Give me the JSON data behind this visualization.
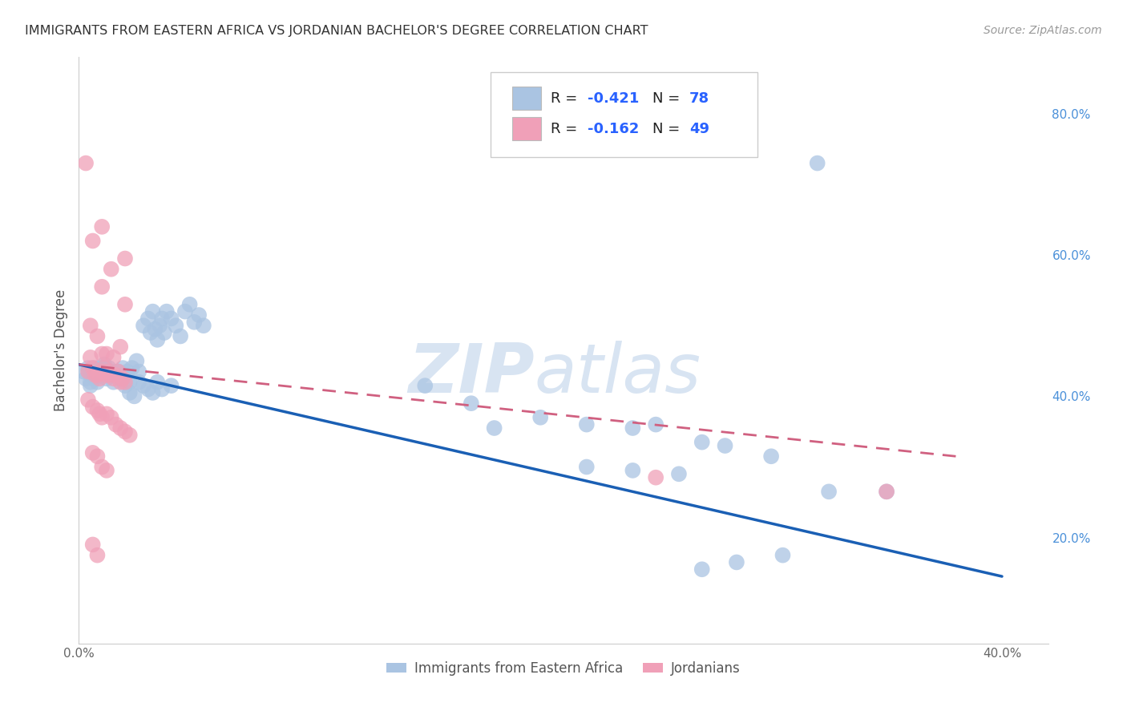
{
  "title": "IMMIGRANTS FROM EASTERN AFRICA VS JORDANIAN BACHELOR'S DEGREE CORRELATION CHART",
  "source": "Source: ZipAtlas.com",
  "ylabel": "Bachelor's Degree",
  "xlim": [
    0.0,
    0.42
  ],
  "ylim": [
    0.05,
    0.88
  ],
  "x_ticks": [
    0.0,
    0.05,
    0.1,
    0.15,
    0.2,
    0.25,
    0.3,
    0.35,
    0.4
  ],
  "x_tick_labels": [
    "0.0%",
    "",
    "",
    "",
    "",
    "",
    "",
    "",
    "40.0%"
  ],
  "y_ticks_right": [
    0.2,
    0.4,
    0.6,
    0.8
  ],
  "y_tick_labels_right": [
    "20.0%",
    "40.0%",
    "60.0%",
    "80.0%"
  ],
  "blue_color": "#aac4e2",
  "pink_color": "#f0a0b8",
  "blue_line_color": "#1a5fb4",
  "pink_line_color": "#d06080",
  "grid_color": "#dde4f0",
  "watermark_zip": "ZIP",
  "watermark_atlas": "atlas",
  "blue_scatter": [
    [
      0.002,
      0.435
    ],
    [
      0.003,
      0.425
    ],
    [
      0.004,
      0.44
    ],
    [
      0.005,
      0.43
    ],
    [
      0.005,
      0.42
    ],
    [
      0.005,
      0.415
    ],
    [
      0.006,
      0.435
    ],
    [
      0.006,
      0.44
    ],
    [
      0.007,
      0.43
    ],
    [
      0.007,
      0.425
    ],
    [
      0.008,
      0.44
    ],
    [
      0.008,
      0.42
    ],
    [
      0.009,
      0.435
    ],
    [
      0.009,
      0.43
    ],
    [
      0.01,
      0.44
    ],
    [
      0.01,
      0.43
    ],
    [
      0.011,
      0.445
    ],
    [
      0.012,
      0.43
    ],
    [
      0.012,
      0.425
    ],
    [
      0.013,
      0.44
    ],
    [
      0.014,
      0.435
    ],
    [
      0.015,
      0.42
    ],
    [
      0.016,
      0.43
    ],
    [
      0.017,
      0.435
    ],
    [
      0.018,
      0.425
    ],
    [
      0.019,
      0.44
    ],
    [
      0.02,
      0.43
    ],
    [
      0.021,
      0.435
    ],
    [
      0.022,
      0.42
    ],
    [
      0.023,
      0.44
    ],
    [
      0.025,
      0.45
    ],
    [
      0.026,
      0.435
    ],
    [
      0.028,
      0.5
    ],
    [
      0.03,
      0.51
    ],
    [
      0.031,
      0.49
    ],
    [
      0.032,
      0.52
    ],
    [
      0.033,
      0.495
    ],
    [
      0.034,
      0.48
    ],
    [
      0.035,
      0.5
    ],
    [
      0.036,
      0.51
    ],
    [
      0.037,
      0.49
    ],
    [
      0.038,
      0.52
    ],
    [
      0.04,
      0.51
    ],
    [
      0.042,
      0.5
    ],
    [
      0.044,
      0.485
    ],
    [
      0.046,
      0.52
    ],
    [
      0.048,
      0.53
    ],
    [
      0.05,
      0.505
    ],
    [
      0.052,
      0.515
    ],
    [
      0.054,
      0.5
    ],
    [
      0.02,
      0.415
    ],
    [
      0.022,
      0.405
    ],
    [
      0.024,
      0.4
    ],
    [
      0.026,
      0.42
    ],
    [
      0.028,
      0.415
    ],
    [
      0.03,
      0.41
    ],
    [
      0.032,
      0.405
    ],
    [
      0.034,
      0.42
    ],
    [
      0.036,
      0.41
    ],
    [
      0.04,
      0.415
    ],
    [
      0.15,
      0.415
    ],
    [
      0.17,
      0.39
    ],
    [
      0.18,
      0.355
    ],
    [
      0.2,
      0.37
    ],
    [
      0.22,
      0.36
    ],
    [
      0.24,
      0.355
    ],
    [
      0.25,
      0.36
    ],
    [
      0.27,
      0.335
    ],
    [
      0.28,
      0.33
    ],
    [
      0.3,
      0.315
    ],
    [
      0.22,
      0.3
    ],
    [
      0.24,
      0.295
    ],
    [
      0.26,
      0.29
    ],
    [
      0.27,
      0.155
    ],
    [
      0.285,
      0.165
    ],
    [
      0.305,
      0.175
    ],
    [
      0.325,
      0.265
    ],
    [
      0.35,
      0.265
    ],
    [
      0.32,
      0.73
    ]
  ],
  "pink_scatter": [
    [
      0.003,
      0.73
    ],
    [
      0.006,
      0.62
    ],
    [
      0.01,
      0.64
    ],
    [
      0.014,
      0.58
    ],
    [
      0.02,
      0.595
    ],
    [
      0.01,
      0.555
    ],
    [
      0.02,
      0.53
    ],
    [
      0.005,
      0.5
    ],
    [
      0.008,
      0.485
    ],
    [
      0.005,
      0.455
    ],
    [
      0.01,
      0.46
    ],
    [
      0.012,
      0.46
    ],
    [
      0.015,
      0.455
    ],
    [
      0.018,
      0.47
    ],
    [
      0.004,
      0.435
    ],
    [
      0.006,
      0.44
    ],
    [
      0.007,
      0.43
    ],
    [
      0.008,
      0.43
    ],
    [
      0.009,
      0.425
    ],
    [
      0.01,
      0.435
    ],
    [
      0.011,
      0.44
    ],
    [
      0.012,
      0.43
    ],
    [
      0.013,
      0.435
    ],
    [
      0.014,
      0.43
    ],
    [
      0.015,
      0.425
    ],
    [
      0.016,
      0.43
    ],
    [
      0.017,
      0.435
    ],
    [
      0.018,
      0.42
    ],
    [
      0.019,
      0.425
    ],
    [
      0.02,
      0.42
    ],
    [
      0.004,
      0.395
    ],
    [
      0.006,
      0.385
    ],
    [
      0.008,
      0.38
    ],
    [
      0.009,
      0.375
    ],
    [
      0.01,
      0.37
    ],
    [
      0.012,
      0.375
    ],
    [
      0.014,
      0.37
    ],
    [
      0.016,
      0.36
    ],
    [
      0.018,
      0.355
    ],
    [
      0.02,
      0.35
    ],
    [
      0.022,
      0.345
    ],
    [
      0.006,
      0.32
    ],
    [
      0.008,
      0.315
    ],
    [
      0.01,
      0.3
    ],
    [
      0.012,
      0.295
    ],
    [
      0.006,
      0.19
    ],
    [
      0.008,
      0.175
    ],
    [
      0.25,
      0.285
    ],
    [
      0.35,
      0.265
    ]
  ],
  "blue_trendline_x": [
    0.0,
    0.4
  ],
  "blue_trendline_y": [
    0.445,
    0.145
  ],
  "pink_trendline_x": [
    0.0,
    0.38
  ],
  "pink_trendline_y": [
    0.445,
    0.315
  ]
}
